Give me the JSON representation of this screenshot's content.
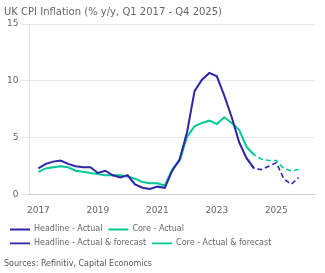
{
  "chart_data": {
    "type": "line",
    "title": "UK CPI Inflation (% y/y, Q1 2017 - Q4 2025)",
    "annotations": [
      "Sources: Refinitiv, Capital Economics"
    ],
    "xlim": [
      2016.7,
      2026.3
    ],
    "xticks": [
      2017,
      2019,
      2021,
      2023,
      2025
    ],
    "ylim": [
      0,
      15
    ],
    "yticks": [
      0,
      5,
      10,
      15
    ],
    "grid": "y",
    "legend": "bottom",
    "series": [
      {
        "name": "Headline - Actual",
        "color": "#2d27a8",
        "line_style": "solid",
        "x": [
          2017.0,
          2017.25,
          2017.5,
          2017.75,
          2018.0,
          2018.25,
          2018.5,
          2018.75,
          2019.0,
          2019.25,
          2019.5,
          2019.75,
          2020.0,
          2020.25,
          2020.5,
          2020.75,
          2021.0,
          2021.25,
          2021.5,
          2021.75,
          2022.0,
          2022.25,
          2022.5,
          2022.75,
          2023.0,
          2023.25,
          2023.5,
          2023.75,
          2024.0,
          2024.25
        ],
        "values": [
          2.3,
          2.7,
          2.9,
          3.0,
          2.7,
          2.5,
          2.4,
          2.4,
          1.9,
          2.1,
          1.7,
          1.5,
          1.7,
          0.9,
          0.6,
          0.5,
          0.7,
          0.6,
          2.1,
          3.1,
          5.5,
          9.1,
          10.1,
          10.7,
          10.4,
          8.7,
          6.8,
          4.6,
          3.2,
          2.3
        ]
      },
      {
        "name": "Core - Actual",
        "color": "#00c896",
        "line_style": "solid",
        "x": [
          2017.0,
          2017.25,
          2017.5,
          2017.75,
          2018.0,
          2018.25,
          2018.5,
          2018.75,
          2019.0,
          2019.25,
          2019.5,
          2019.75,
          2020.0,
          2020.25,
          2020.5,
          2020.75,
          2021.0,
          2021.25,
          2021.5,
          2021.75,
          2022.0,
          2022.25,
          2022.5,
          2022.75,
          2023.0,
          2023.25,
          2023.5,
          2023.75,
          2024.0,
          2024.25
        ],
        "values": [
          2.0,
          2.3,
          2.4,
          2.5,
          2.4,
          2.1,
          2.0,
          1.9,
          1.8,
          1.7,
          1.7,
          1.7,
          1.6,
          1.4,
          1.1,
          1.0,
          1.0,
          0.8,
          2.2,
          3.0,
          5.1,
          6.0,
          6.3,
          6.5,
          6.2,
          6.8,
          6.3,
          5.7,
          4.2,
          3.5
        ]
      },
      {
        "name": "Headline - Actual & forecast",
        "color": "#2d27a8",
        "line_style": "dashed",
        "x": [
          2024.0,
          2024.25,
          2024.5,
          2024.75,
          2025.0,
          2025.25,
          2025.5,
          2025.75
        ],
        "values": [
          3.2,
          2.3,
          2.2,
          2.5,
          2.8,
          1.4,
          0.9,
          1.5
        ]
      },
      {
        "name": "Core - Actual & forecast",
        "color": "#00c896",
        "line_style": "dashed",
        "x": [
          2024.0,
          2024.25,
          2024.5,
          2024.75,
          2025.0,
          2025.25,
          2025.5,
          2025.75
        ],
        "values": [
          4.2,
          3.5,
          3.1,
          3.0,
          3.0,
          2.3,
          2.1,
          2.2
        ]
      }
    ]
  }
}
